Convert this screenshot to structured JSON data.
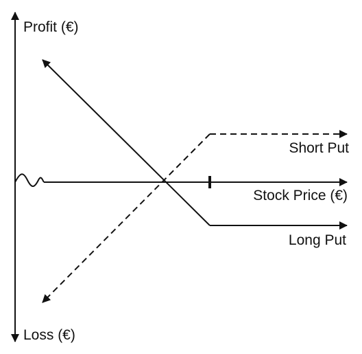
{
  "diagram": {
    "y_axis_top_label": "Profit (€)",
    "y_axis_bottom_label": "Loss (€)",
    "x_axis_label": "Stock Price (€)",
    "short_put_label": "Short Put",
    "long_put_label": "Long Put",
    "line_color": "#111111",
    "background": "#ffffff"
  }
}
